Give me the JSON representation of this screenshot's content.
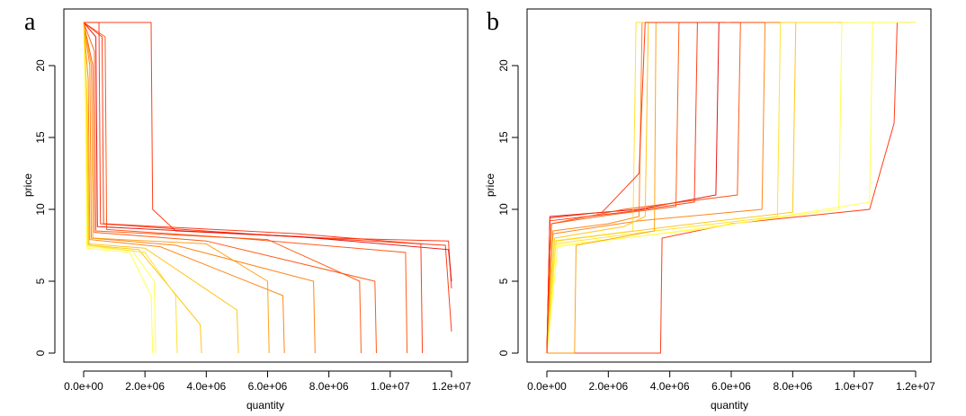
{
  "chart_data": [
    {
      "type": "line",
      "panel_label": "a",
      "xlabel": "quantity",
      "ylabel": "price",
      "xlim": [
        0,
        12000000
      ],
      "ylim": [
        0,
        23
      ],
      "x_ticks": [
        0,
        2000000,
        4000000,
        6000000,
        8000000,
        10000000,
        12000000
      ],
      "x_tick_labels": [
        "0.0e+00",
        "2.0e+06",
        "4.0e+06",
        "6.0e+06",
        "8.0e+06",
        "1.0e+07",
        "1.2e+07"
      ],
      "y_ticks": [
        0,
        5,
        10,
        15,
        20
      ],
      "y_tick_labels": [
        "0",
        "5",
        "10",
        "15",
        "20"
      ],
      "grid": false,
      "legend": "none",
      "color_scale": [
        "#ffff40",
        "#ffc000",
        "#ff7a00",
        "#ff2a00",
        "#e00000"
      ],
      "series": [
        {
          "color": "#ff2a00",
          "points": [
            [
              0,
              23
            ],
            [
              2200000,
              23
            ],
            [
              2250000,
              10
            ],
            [
              3000000,
              8.5
            ],
            [
              8000000,
              8
            ],
            [
              11900000,
              7.8
            ],
            [
              12000000,
              4.5
            ]
          ]
        },
        {
          "color": "#ff2a00",
          "points": [
            [
              0,
              23
            ],
            [
              500000,
              23
            ],
            [
              550000,
              9
            ],
            [
              6000000,
              8.2
            ],
            [
              11800000,
              7.5
            ],
            [
              12000000,
              1.5
            ]
          ]
        },
        {
          "color": "#e00000",
          "points": [
            [
              0,
              23
            ],
            [
              400000,
              22
            ],
            [
              450000,
              8.8
            ],
            [
              7000000,
              8.1
            ],
            [
              11900000,
              7.2
            ],
            [
              12000000,
              5
            ]
          ]
        },
        {
          "color": "#ff4a00",
          "points": [
            [
              0,
              23
            ],
            [
              700000,
              22
            ],
            [
              750000,
              8.6
            ],
            [
              5000000,
              8.0
            ],
            [
              10500000,
              7.0
            ],
            [
              10550000,
              0
            ]
          ]
        },
        {
          "color": "#ff4a00",
          "points": [
            [
              0,
              23
            ],
            [
              300000,
              20
            ],
            [
              350000,
              8.4
            ],
            [
              4000000,
              7.8
            ],
            [
              9500000,
              5
            ],
            [
              9550000,
              0
            ]
          ]
        },
        {
          "color": "#ff7a00",
          "points": [
            [
              0,
              23
            ],
            [
              200000,
              20
            ],
            [
              250000,
              8.0
            ],
            [
              3000000,
              7.5
            ],
            [
              7500000,
              5
            ],
            [
              7550000,
              0
            ]
          ]
        },
        {
          "color": "#ff7a00",
          "points": [
            [
              0,
              23
            ],
            [
              150000,
              19
            ],
            [
              200000,
              7.9
            ],
            [
              2500000,
              7.4
            ],
            [
              6500000,
              4
            ],
            [
              6550000,
              0
            ]
          ]
        },
        {
          "color": "#ffc000",
          "points": [
            [
              0,
              23
            ],
            [
              100000,
              18
            ],
            [
              150000,
              7.6
            ],
            [
              2000000,
              7.3
            ],
            [
              5000000,
              3
            ],
            [
              5050000,
              0
            ]
          ]
        },
        {
          "color": "#ffc000",
          "points": [
            [
              0,
              23
            ],
            [
              120000,
              17
            ],
            [
              180000,
              7.5
            ],
            [
              1800000,
              7.2
            ],
            [
              3800000,
              2
            ],
            [
              3850000,
              0
            ]
          ]
        },
        {
          "color": "#ffff40",
          "points": [
            [
              0,
              23
            ],
            [
              80000,
              18
            ],
            [
              120000,
              7.4
            ],
            [
              1600000,
              7.1
            ],
            [
              2300000,
              5
            ],
            [
              2350000,
              0
            ]
          ]
        },
        {
          "color": "#ffff40",
          "points": [
            [
              0,
              23
            ],
            [
              60000,
              17
            ],
            [
              100000,
              7.3
            ],
            [
              1500000,
              7.0
            ],
            [
              2200000,
              4
            ],
            [
              2250000,
              0
            ]
          ]
        },
        {
          "color": "#ffdf20",
          "points": [
            [
              0,
              23
            ],
            [
              90000,
              18
            ],
            [
              140000,
              7.5
            ],
            [
              2000000,
              7.0
            ],
            [
              3000000,
              4
            ],
            [
              3050000,
              0
            ]
          ]
        },
        {
          "color": "#ff2a00",
          "points": [
            [
              0,
              23
            ],
            [
              600000,
              22
            ],
            [
              650000,
              9.0
            ],
            [
              7000000,
              8.3
            ],
            [
              11000000,
              7.6
            ],
            [
              11050000,
              0
            ]
          ]
        },
        {
          "color": "#ff5000",
          "points": [
            [
              0,
              23
            ],
            [
              350000,
              21
            ],
            [
              400000,
              8.5
            ],
            [
              6000000,
              7.9
            ],
            [
              9000000,
              5
            ],
            [
              9050000,
              0
            ]
          ]
        },
        {
          "color": "#ff9a00",
          "points": [
            [
              0,
              23
            ],
            [
              250000,
              20
            ],
            [
              300000,
              8.0
            ],
            [
              4000000,
              7.6
            ],
            [
              6000000,
              5
            ],
            [
              6050000,
              0
            ]
          ]
        }
      ]
    },
    {
      "type": "line",
      "panel_label": "b",
      "xlabel": "quantity",
      "ylabel": "price",
      "xlim": [
        0,
        12000000
      ],
      "ylim": [
        0,
        23
      ],
      "x_ticks": [
        0,
        2000000,
        4000000,
        6000000,
        8000000,
        10000000,
        12000000
      ],
      "x_tick_labels": [
        "0.0e+00",
        "2.0e+06",
        "4.0e+06",
        "6.0e+06",
        "8.0e+06",
        "1.0e+07",
        "1.2e+07"
      ],
      "y_ticks": [
        0,
        5,
        10,
        15,
        20
      ],
      "y_tick_labels": [
        "0",
        "5",
        "10",
        "15",
        "20"
      ],
      "grid": false,
      "legend": "none",
      "color_scale": [
        "#ffff40",
        "#ffc000",
        "#ff7a00",
        "#ff2a00",
        "#e00000"
      ],
      "series": [
        {
          "color": "#ff2a00",
          "points": [
            [
              0,
              0
            ],
            [
              3700000,
              0
            ],
            [
              3750000,
              8
            ],
            [
              6000000,
              9
            ],
            [
              10500000,
              10
            ],
            [
              11300000,
              16
            ],
            [
              11400000,
              23
            ],
            [
              12000000,
              23
            ]
          ]
        },
        {
          "color": "#e00000",
          "points": [
            [
              0,
              0
            ],
            [
              100000,
              9.5
            ],
            [
              3000000,
              10
            ],
            [
              5500000,
              11
            ],
            [
              5600000,
              23
            ],
            [
              8500000,
              23
            ]
          ]
        },
        {
          "color": "#ff2a00",
          "points": [
            [
              0,
              0
            ],
            [
              100000,
              9.2
            ],
            [
              2500000,
              9.8
            ],
            [
              4800000,
              10.5
            ],
            [
              4900000,
              23
            ],
            [
              7000000,
              23
            ]
          ]
        },
        {
          "color": "#ff4a00",
          "points": [
            [
              0,
              0
            ],
            [
              150000,
              9.0
            ],
            [
              2500000,
              10
            ],
            [
              6200000,
              11
            ],
            [
              6300000,
              23
            ],
            [
              8000000,
              23
            ]
          ]
        },
        {
          "color": "#ff7a00",
          "points": [
            [
              0,
              0
            ],
            [
              200000,
              8.5
            ],
            [
              2000000,
              9.0
            ],
            [
              3000000,
              9.5
            ],
            [
              3100000,
              23
            ],
            [
              5000000,
              23
            ]
          ]
        },
        {
          "color": "#ff7a00",
          "points": [
            [
              0,
              0
            ],
            [
              200000,
              8.3
            ],
            [
              3000000,
              9.2
            ],
            [
              7000000,
              10
            ],
            [
              7100000,
              23
            ],
            [
              9000000,
              23
            ]
          ]
        },
        {
          "color": "#ffc000",
          "points": [
            [
              0,
              0
            ],
            [
              250000,
              8.0
            ],
            [
              2500000,
              8.8
            ],
            [
              3200000,
              9.5
            ],
            [
              3300000,
              23
            ],
            [
              5500000,
              23
            ]
          ]
        },
        {
          "color": "#ffc000",
          "points": [
            [
              0,
              0
            ],
            [
              300000,
              7.8
            ],
            [
              4000000,
              8.8
            ],
            [
              8000000,
              9.8
            ],
            [
              8100000,
              23
            ],
            [
              10000000,
              23
            ]
          ]
        },
        {
          "color": "#ffff40",
          "points": [
            [
              0,
              0
            ],
            [
              300000,
              7.5
            ],
            [
              5000000,
              8.6
            ],
            [
              10500000,
              10.5
            ],
            [
              10600000,
              23
            ],
            [
              12000000,
              23
            ]
          ]
        },
        {
          "color": "#ffff40",
          "points": [
            [
              0,
              0
            ],
            [
              350000,
              7.4
            ],
            [
              4000000,
              8.4
            ],
            [
              9500000,
              10
            ],
            [
              9600000,
              23
            ],
            [
              11000000,
              23
            ]
          ]
        },
        {
          "color": "#ffdf20",
          "points": [
            [
              0,
              0
            ],
            [
              250000,
              7.6
            ],
            [
              3500000,
              8.5
            ],
            [
              7500000,
              9.5
            ],
            [
              7600000,
              23
            ],
            [
              9500000,
              23
            ]
          ]
        },
        {
          "color": "#ffdf20",
          "points": [
            [
              0,
              0
            ],
            [
              200000,
              7.8
            ],
            [
              2800000,
              8.5
            ],
            [
              2900000,
              23
            ],
            [
              4500000,
              23
            ]
          ]
        },
        {
          "color": "#ff5000",
          "points": [
            [
              0,
              0
            ],
            [
              150000,
              9.0
            ],
            [
              2000000,
              9.6
            ],
            [
              4200000,
              10.2
            ],
            [
              4300000,
              23
            ],
            [
              6000000,
              23
            ]
          ]
        },
        {
          "color": "#ff9a00",
          "points": [
            [
              0,
              0
            ],
            [
              900000,
              0
            ],
            [
              950000,
              7.5
            ],
            [
              3500000,
              8.5
            ],
            [
              3550000,
              23
            ],
            [
              5200000,
              23
            ]
          ]
        },
        {
          "color": "#ff2a00",
          "points": [
            [
              0,
              0
            ],
            [
              100000,
              9.4
            ],
            [
              1800000,
              9.8
            ],
            [
              3000000,
              12.5
            ],
            [
              3200000,
              23
            ],
            [
              5800000,
              23
            ]
          ]
        }
      ]
    }
  ]
}
